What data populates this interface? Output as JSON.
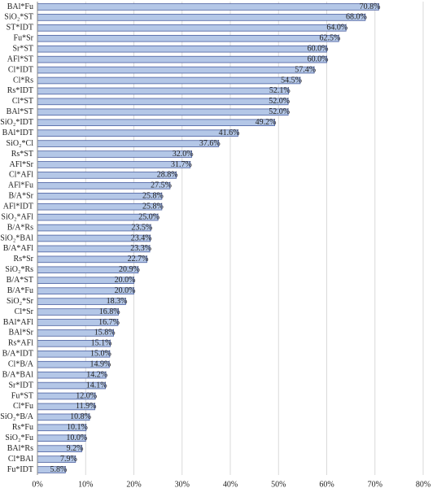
{
  "chart_data": {
    "type": "barh",
    "categories": [
      "BAl*Fu",
      "SiO₂*ST",
      "ST*IDT",
      "Fu*Sr",
      "Sr*ST",
      "AFl*ST",
      "Cl*IDT",
      "Cl*Rs",
      "Rs*IDT",
      "Cl*ST",
      "BAl*ST",
      "SiO₂*IDT",
      "BAl*IDT",
      "SiO₂*Cl",
      "Rs*ST",
      "AFl*Sr",
      "Cl*AFl",
      "AFl*Fu",
      "B/A*Sr",
      "AFl*IDT",
      "SiO₂*AFl",
      "B/A*Rs",
      "SiO₂*BAl",
      "B/A*AFl",
      "Rs*Sr",
      "SiO₂*Rs",
      "B/A*ST",
      "B/A*Fu",
      "SiO₂*Sr",
      "Cl*Sr",
      "BAl*AFl",
      "BAl*Sr",
      "Rs*AFl",
      "B/A*IDT",
      "Cl*B/A",
      "B/A*BAl",
      "Sr*IDT",
      "Fu*ST",
      "Cl*Fu",
      "SiO₂*B/A",
      "Rs*Fu",
      "SiO₂*Fu",
      "BAl*Rs",
      "Cl*BAl",
      "Fu*IDT"
    ],
    "values": [
      70.8,
      68.0,
      64.0,
      62.5,
      60.0,
      60.0,
      57.4,
      54.5,
      52.1,
      52.0,
      52.0,
      49.2,
      41.6,
      37.6,
      32.0,
      31.7,
      28.8,
      27.5,
      25.8,
      25.8,
      25.0,
      23.5,
      23.4,
      23.3,
      22.7,
      20.9,
      20.0,
      20.0,
      18.3,
      16.8,
      16.7,
      15.8,
      15.1,
      15.0,
      14.9,
      14.2,
      14.1,
      12.0,
      11.9,
      10.8,
      10.1,
      10.0,
      9.2,
      7.9,
      5.8
    ],
    "value_labels": [
      "70.8%",
      "68.0%",
      "64.0%",
      "62.5%",
      "60.0%",
      "60.0%",
      "57.4%",
      "54.5%",
      "52.1%",
      "52.0%",
      "52.0%",
      "49.2%",
      "41.6%",
      "37.6%",
      "32.0%",
      "31.7%",
      "28.8%",
      "27.5%",
      "25.8%",
      "25.8%",
      "25.0%",
      "23.5%",
      "23.4%",
      "23.3%",
      "22.7%",
      "20.9%",
      "20.0%",
      "20.0%",
      "18.3%",
      "16.8%",
      "16.7%",
      "15.8%",
      "15.1%",
      "15.0%",
      "14.9%",
      "14.2%",
      "14.1%",
      "12.0%",
      "11.9%",
      "10.8%",
      "10.1%",
      "10.0%",
      "9.2%",
      "7.9%",
      "5.8%"
    ],
    "color": "#b4c7e7",
    "edge_color": "#4a5fa0",
    "xlim": [
      0,
      80
    ],
    "xticks": [
      {
        "value": 0,
        "label": "0%"
      },
      {
        "value": 10,
        "label": "10%"
      },
      {
        "value": 20,
        "label": "20%"
      },
      {
        "value": 30,
        "label": "30%"
      },
      {
        "value": 40,
        "label": "40%"
      },
      {
        "value": 50,
        "label": "50%"
      },
      {
        "value": 60,
        "label": "60%"
      },
      {
        "value": 70,
        "label": "70%"
      },
      {
        "value": 80,
        "label": "80%"
      }
    ],
    "grid": true
  }
}
